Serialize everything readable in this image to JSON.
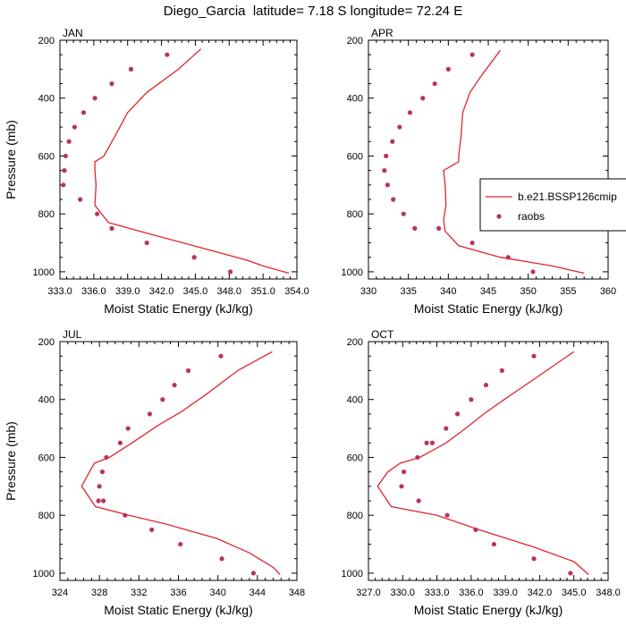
{
  "main_title": "Diego_Garcia  latitude= 7.18 S longitude= 72.24 E",
  "colors": {
    "line": "#e0262f",
    "dot": "#b8335f",
    "axis": "#000000"
  },
  "chart_data": [
    {
      "type": "line",
      "panel_label": "JAN",
      "xlabel": "Moist Static Energy (kJ/kg)",
      "ylabel": "Pressure (mb)",
      "xlim": [
        333.0,
        354.0
      ],
      "ylim": [
        1025,
        200
      ],
      "y_reversed": true,
      "xticks": [
        "333.0",
        "336.0",
        "339.0",
        "342.0",
        "345.0",
        "348.0",
        "351.0",
        "354.0"
      ],
      "yticks": [
        "200",
        "400",
        "600",
        "800",
        "1000"
      ],
      "series": [
        {
          "name": "b.e21.BSSP126cmip",
          "style": "line",
          "x": [
            345.5,
            343.5,
            340.7,
            339.0,
            337.9,
            336.9,
            336.1,
            336.1,
            336.2,
            336.1,
            337.3,
            341.0,
            345.8,
            349.6,
            351.0,
            353.3
          ],
          "y": [
            230,
            300,
            380,
            450,
            530,
            600,
            620,
            650,
            700,
            770,
            830,
            870,
            920,
            960,
            980,
            1005
          ]
        },
        {
          "name": "raobs",
          "style": "markers",
          "x": [
            342.5,
            339.3,
            337.6,
            336.1,
            335.1,
            334.3,
            333.8,
            333.5,
            333.4,
            333.3,
            334.8,
            336.3,
            337.6,
            340.7,
            344.9,
            348.1
          ],
          "y": [
            250,
            300,
            350,
            400,
            450,
            500,
            550,
            600,
            650,
            700,
            750,
            800,
            850,
            900,
            950,
            1000
          ]
        }
      ]
    },
    {
      "type": "line",
      "panel_label": "APR",
      "xlabel": "Moist Static Energy (kJ/kg)",
      "ylabel": "",
      "xlim": [
        330,
        360
      ],
      "ylim": [
        1025,
        200
      ],
      "y_reversed": true,
      "xticks": [
        "330",
        "335",
        "340",
        "345",
        "350",
        "355",
        "360"
      ],
      "yticks": [
        "200",
        "400",
        "600",
        "800",
        "1000"
      ],
      "series": [
        {
          "name": "b.e21.BSSP126cmip",
          "style": "line",
          "x": [
            346.5,
            344.2,
            342.7,
            341.8,
            341.6,
            341.3,
            341.3,
            339.4,
            339.6,
            339.7,
            339.4,
            339.6,
            341.3,
            346.5,
            353.0,
            357.0
          ],
          "y": [
            235,
            320,
            380,
            450,
            530,
            600,
            620,
            650,
            700,
            770,
            820,
            860,
            910,
            950,
            980,
            1005
          ]
        },
        {
          "name": "raobs",
          "style": "markers",
          "x": [
            343.0,
            340.0,
            338.3,
            336.8,
            335.2,
            333.9,
            333.0,
            332.2,
            332.0,
            332.4,
            333.1,
            334.4,
            335.8,
            338.8,
            343.0,
            347.5,
            350.6
          ],
          "y": [
            250,
            300,
            350,
            400,
            450,
            500,
            550,
            600,
            650,
            700,
            750,
            800,
            850,
            850,
            900,
            950,
            1000
          ]
        }
      ]
    },
    {
      "type": "line",
      "panel_label": "JUL",
      "xlabel": "Moist Static Energy (kJ/kg)",
      "ylabel": "Pressure (mb)",
      "xlim": [
        324,
        348
      ],
      "ylim": [
        1025,
        200
      ],
      "y_reversed": true,
      "xticks": [
        "324",
        "328",
        "332",
        "336",
        "340",
        "344",
        "348"
      ],
      "yticks": [
        "200",
        "400",
        "600",
        "800",
        "1000"
      ],
      "series": [
        {
          "name": "b.e21.BSSP126cmip",
          "style": "line",
          "x": [
            345.5,
            342.0,
            338.9,
            336.4,
            333.9,
            331.3,
            329.0,
            327.5,
            327.0,
            326.2,
            327.6,
            331.0,
            334.7,
            339.9,
            343.2,
            345.6,
            346.3
          ],
          "y": [
            235,
            300,
            380,
            440,
            490,
            550,
            600,
            620,
            650,
            700,
            770,
            800,
            830,
            880,
            930,
            980,
            1005
          ]
        },
        {
          "name": "raobs",
          "style": "markers",
          "x": [
            340.3,
            337.0,
            335.6,
            334.4,
            333.1,
            330.9,
            330.1,
            328.7,
            328.3,
            328.0,
            327.9,
            328.4,
            330.6,
            333.3,
            336.2,
            340.4,
            343.6
          ],
          "y": [
            250,
            300,
            350,
            400,
            450,
            500,
            550,
            600,
            650,
            700,
            750,
            750,
            800,
            850,
            900,
            950,
            1000
          ]
        }
      ]
    },
    {
      "type": "line",
      "panel_label": "OCT",
      "xlabel": "Moist Static Energy (kJ/kg)",
      "ylabel": "",
      "xlim": [
        327.0,
        348.0
      ],
      "ylim": [
        1025,
        200
      ],
      "y_reversed": true,
      "xticks": [
        "327.0",
        "330.0",
        "333.0",
        "336.0",
        "339.0",
        "342.0",
        "345.0",
        "348.0"
      ],
      "yticks": [
        "200",
        "400",
        "600",
        "800",
        "1000"
      ],
      "series": [
        {
          "name": "b.e21.BSSP126cmip",
          "style": "line",
          "x": [
            345.0,
            341.5,
            338.9,
            337.1,
            335.5,
            333.8,
            331.5,
            329.8,
            328.7,
            327.8,
            329.0,
            333.0,
            336.7,
            341.5,
            345.0,
            346.3
          ],
          "y": [
            235,
            330,
            400,
            450,
            500,
            550,
            600,
            620,
            650,
            700,
            770,
            800,
            850,
            910,
            960,
            1005
          ]
        },
        {
          "name": "raobs",
          "style": "markers",
          "x": [
            341.5,
            338.7,
            337.3,
            336.0,
            334.8,
            333.8,
            332.6,
            332.1,
            331.3,
            330.1,
            329.9,
            331.4,
            333.9,
            336.4,
            338.0,
            341.5,
            344.7
          ],
          "y": [
            250,
            300,
            350,
            400,
            450,
            500,
            550,
            550,
            600,
            650,
            700,
            750,
            800,
            850,
            900,
            950,
            1000
          ]
        }
      ]
    }
  ]
}
